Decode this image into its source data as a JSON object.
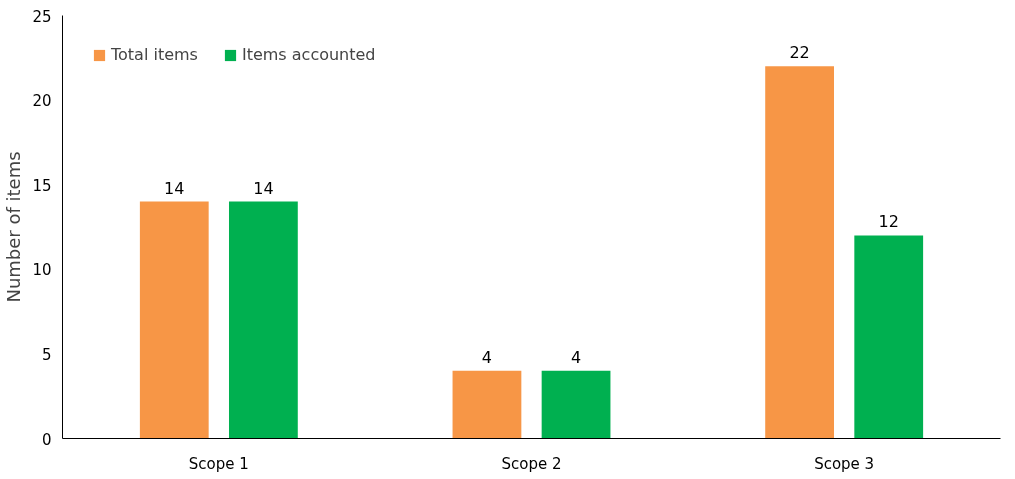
{
  "chart_data": {
    "type": "bar",
    "ylabel": "Number of items",
    "categories": [
      "Scope 1",
      "Scope 2",
      "Scope 3"
    ],
    "series": [
      {
        "name": "Total items",
        "color": "#f79646",
        "values": [
          14,
          4,
          22
        ]
      },
      {
        "name": "Items accounted",
        "color": "#00b050",
        "values": [
          14,
          4,
          12
        ]
      }
    ],
    "ylim": [
      0,
      25
    ],
    "yticks": [
      0,
      5,
      10,
      15,
      20,
      25
    ],
    "data_labels": true,
    "legend": "top left",
    "grid": false
  }
}
